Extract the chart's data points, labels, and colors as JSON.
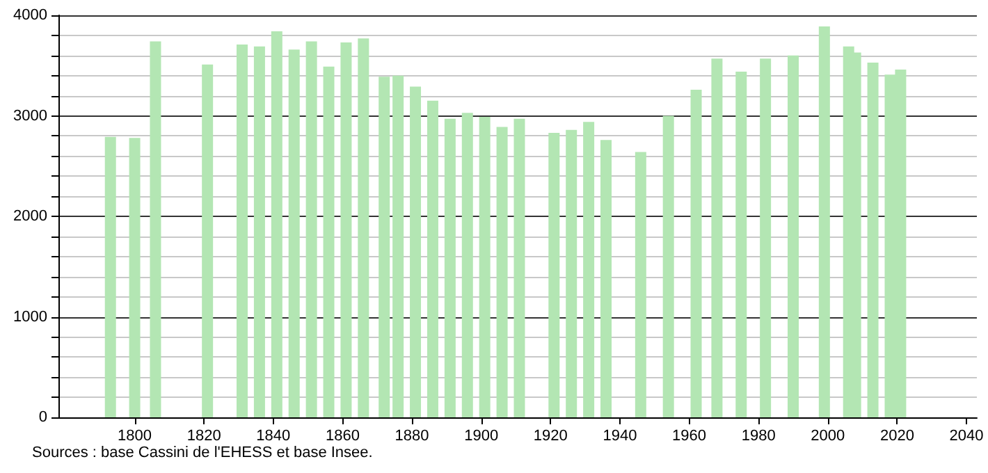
{
  "chart_data": {
    "type": "bar",
    "x": [
      1793,
      1800,
      1806,
      1821,
      1831,
      1836,
      1841,
      1846,
      1851,
      1856,
      1861,
      1866,
      1872,
      1876,
      1881,
      1886,
      1891,
      1896,
      1901,
      1906,
      1911,
      1921,
      1926,
      1931,
      1936,
      1946,
      1954,
      1962,
      1968,
      1975,
      1982,
      1990,
      1999,
      2006,
      2008,
      2013,
      2018,
      2021
    ],
    "values": [
      2790,
      2780,
      3740,
      3510,
      3710,
      3690,
      3840,
      3660,
      3740,
      3490,
      3730,
      3770,
      3390,
      3400,
      3290,
      3150,
      2970,
      3030,
      2990,
      2890,
      2970,
      2830,
      2860,
      2940,
      2760,
      2640,
      3000,
      3260,
      3570,
      3440,
      3570,
      3600,
      3890,
      3690,
      3630,
      3530,
      3410,
      3460
    ],
    "color": "#b3e6b3",
    "xlim": [
      1778,
      2043
    ],
    "xticks": [
      1800,
      1820,
      1840,
      1860,
      1880,
      1900,
      1920,
      1940,
      1960,
      1980,
      2000,
      2020,
      2040
    ],
    "ylim": [
      0,
      4000
    ],
    "yticks": [
      0,
      {
        "value": 200,
        "label": null
      },
      {
        "value": 400,
        "label": null
      },
      {
        "value": 600,
        "label": null
      },
      {
        "value": 800,
        "label": null
      },
      1000,
      {
        "value": 1200,
        "label": null
      },
      {
        "value": 1400,
        "label": null
      },
      {
        "value": 1600,
        "label": null
      },
      {
        "value": 1800,
        "label": null
      },
      2000,
      {
        "value": 2200,
        "label": null
      },
      {
        "value": 2400,
        "label": null
      },
      {
        "value": 2600,
        "label": null
      },
      {
        "value": 2800,
        "label": null
      },
      3000,
      {
        "value": 3200,
        "label": null
      },
      {
        "value": 3400,
        "label": null
      },
      {
        "value": 3600,
        "label": null
      },
      {
        "value": 3800,
        "label": null
      },
      4000
    ],
    "grid": "y",
    "annotations": [
      "Sources : base Cassini de l'EHESS et base Insee."
    ]
  }
}
